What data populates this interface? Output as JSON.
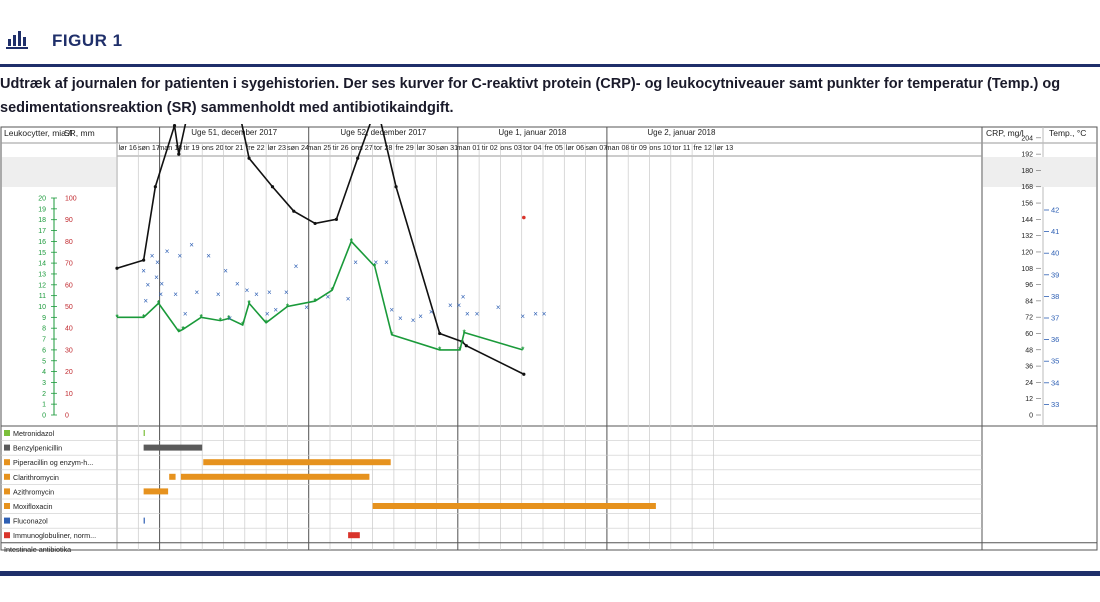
{
  "figure": {
    "label": "FIGUR 1",
    "caption": "Udtræk af journalen for patienten i sygehistorien. Der ses kurver for C-reaktivt protein (CRP)- og leukocytniveauer samt punkter for temperatur (Temp.) og sedimentationsreaktion (SR) sammenholdt med antibiotikaindgift."
  },
  "colors": {
    "navy": "#1f2f6a",
    "crp": "#111111",
    "leuko": "#1a9a3a",
    "temp": "#2d5fb4",
    "sr": "#2d5fb4",
    "grid": "#c9c9c9"
  },
  "chart_data": {
    "type": "line",
    "left_headers": {
      "leuko": "Leukocytter, mia./l",
      "sr": "SR, mm"
    },
    "right_headers": {
      "crp": "CRP, mg/l",
      "temp": "Temp., °C"
    },
    "weeks": [
      "Uge 51, december 2017",
      "Uge 52, december 2017",
      "Uge 1, januar 2018",
      "Uge 2, januar 2018"
    ],
    "days": [
      "lør 16",
      "søn 17",
      "man 18",
      "tir 19",
      "ons 20",
      "tor 21",
      "fre 22",
      "lør 23",
      "søn 24",
      "man 25",
      "tir 26",
      "ons 27",
      "tor 28",
      "fre 29",
      "lør 30",
      "søn 31",
      "man 01",
      "tir 02",
      "ons 03",
      "tor 04",
      "fre 05",
      "lør 06",
      "søn 07",
      "man 08",
      "tir 09",
      "ons 10",
      "tor 11",
      "fre 12",
      "lør 13"
    ],
    "leuko_ticks": [
      "20",
      "19",
      "18",
      "17",
      "16",
      "15",
      "14",
      "13",
      "12",
      "11",
      "10",
      "9",
      "8",
      "7",
      "6",
      "5",
      "4",
      "3",
      "2",
      "1",
      "0"
    ],
    "sr_ticks": [
      "100",
      "90",
      "80",
      "70",
      "60",
      "50",
      "40",
      "30",
      "20",
      "10",
      "0"
    ],
    "crp_ticks": [
      "276",
      "264",
      "252",
      "240",
      "228",
      "216",
      "204",
      "192",
      "180",
      "168",
      "156",
      "144",
      "132",
      "120",
      "108",
      "96",
      "84",
      "72",
      "60",
      "48",
      "36",
      "24",
      "12",
      "0"
    ],
    "temp_ticks": [
      "42",
      "41",
      "40",
      "39",
      "38",
      "37",
      "36",
      "35",
      "34",
      "33"
    ],
    "ylim": {
      "crp": [
        0,
        276
      ],
      "leuko": [
        0,
        20
      ],
      "sr": [
        0,
        100
      ],
      "temp": [
        32.4,
        42.3
      ]
    },
    "series": [
      {
        "key": "crp",
        "points": [
          [
            0,
            108
          ],
          [
            1.25,
            114
          ],
          [
            1.8,
            168
          ],
          [
            2.7,
            213
          ],
          [
            2.9,
            192
          ],
          [
            3.8,
            256
          ],
          [
            4.85,
            266
          ],
          [
            5.3,
            256
          ],
          [
            6.2,
            189
          ],
          [
            7.3,
            168
          ],
          [
            8.3,
            150
          ],
          [
            9.3,
            141
          ],
          [
            10.3,
            144
          ],
          [
            11.3,
            189
          ],
          [
            12.2,
            228
          ],
          [
            13.1,
            168
          ],
          [
            15.15,
            60
          ],
          [
            16.2,
            54
          ],
          [
            16.4,
            51
          ],
          [
            19.1,
            30
          ]
        ]
      },
      {
        "key": "leuko",
        "points": [
          [
            0,
            9
          ],
          [
            1.25,
            9
          ],
          [
            1.95,
            10.3
          ],
          [
            2.9,
            7.7
          ],
          [
            3.1,
            7.9
          ],
          [
            3.95,
            9.0
          ],
          [
            4.85,
            8.7
          ],
          [
            5.25,
            8.9
          ],
          [
            5.9,
            8.3
          ],
          [
            6.2,
            10.3
          ],
          [
            7.0,
            8.5
          ],
          [
            8.0,
            10.0
          ],
          [
            9.3,
            10.5
          ],
          [
            10.1,
            11.5
          ],
          [
            11.0,
            16.0
          ],
          [
            12.1,
            13.7
          ],
          [
            12.9,
            7.4
          ],
          [
            15.15,
            6.0
          ],
          [
            16.1,
            6.0
          ],
          [
            16.3,
            7.6
          ],
          [
            19.05,
            6.0
          ]
        ]
      }
    ],
    "temp_points": [
      [
        1.25,
        39.2
      ],
      [
        1.45,
        38.55
      ],
      [
        1.35,
        37.8
      ],
      [
        1.65,
        39.9
      ],
      [
        1.85,
        38.9
      ],
      [
        1.9,
        39.6
      ],
      [
        2.05,
        38.1
      ],
      [
        2.1,
        38.6
      ],
      [
        2.35,
        40.1
      ],
      [
        2.75,
        38.1
      ],
      [
        2.95,
        39.9
      ],
      [
        3.2,
        37.2
      ],
      [
        3.5,
        40.4
      ],
      [
        3.75,
        38.2
      ],
      [
        4.3,
        39.9
      ],
      [
        4.75,
        38.1
      ],
      [
        5.1,
        39.2
      ],
      [
        5.3,
        37.0
      ],
      [
        5.65,
        38.6
      ],
      [
        6.1,
        38.3
      ],
      [
        6.55,
        38.1
      ],
      [
        7.05,
        37.2
      ],
      [
        7.15,
        38.2
      ],
      [
        7.45,
        37.4
      ],
      [
        7.95,
        38.2
      ],
      [
        8.4,
        39.4
      ],
      [
        8.9,
        37.5
      ],
      [
        9.9,
        38.0
      ],
      [
        10.85,
        37.9
      ],
      [
        11.2,
        39.6
      ],
      [
        12.15,
        39.6
      ],
      [
        12.65,
        39.6
      ],
      [
        12.9,
        37.4
      ],
      [
        13.3,
        37.0
      ],
      [
        13.9,
        36.9
      ],
      [
        14.25,
        37.1
      ],
      [
        14.75,
        37.3
      ],
      [
        15.65,
        37.6
      ],
      [
        16.05,
        37.6
      ],
      [
        16.25,
        38.0
      ],
      [
        16.45,
        37.2
      ],
      [
        16.9,
        37.2
      ],
      [
        17.9,
        37.5
      ],
      [
        19.05,
        37.1
      ],
      [
        19.65,
        37.2
      ],
      [
        20.05,
        37.2
      ]
    ],
    "sr_points": [
      [
        19.1,
        91
      ]
    ],
    "drugs": [
      {
        "name": "Metronidazol",
        "color": "#7bbf3a",
        "bars": [
          [
            1.25,
            1.3
          ]
        ]
      },
      {
        "name": "Benzylpenicillin",
        "color": "#5b5b5b",
        "bars": [
          [
            1.25,
            4.0
          ]
        ]
      },
      {
        "name": "Piperacillin og enzym-h...",
        "color": "#e6921e",
        "bars": [
          [
            4.05,
            12.85
          ]
        ]
      },
      {
        "name": "Clarithromycin",
        "color": "#e6921e",
        "bars": [
          [
            2.45,
            2.75
          ],
          [
            3.0,
            11.85
          ]
        ]
      },
      {
        "name": "Azithromycin",
        "color": "#e6921e",
        "bars": [
          [
            1.25,
            2.4
          ]
        ]
      },
      {
        "name": "Moxifloxacin",
        "color": "#e6921e",
        "bars": [
          [
            12.0,
            25.3
          ]
        ]
      },
      {
        "name": "Fluconazol",
        "color": "#2d5fb4",
        "bars": [
          [
            1.25,
            1.3
          ]
        ]
      },
      {
        "name": "Immunoglobuliner, norm...",
        "color": "#d9342b",
        "bars": [
          [
            10.85,
            11.4
          ]
        ]
      }
    ],
    "footer_row": "Intestinale antibiotika"
  }
}
